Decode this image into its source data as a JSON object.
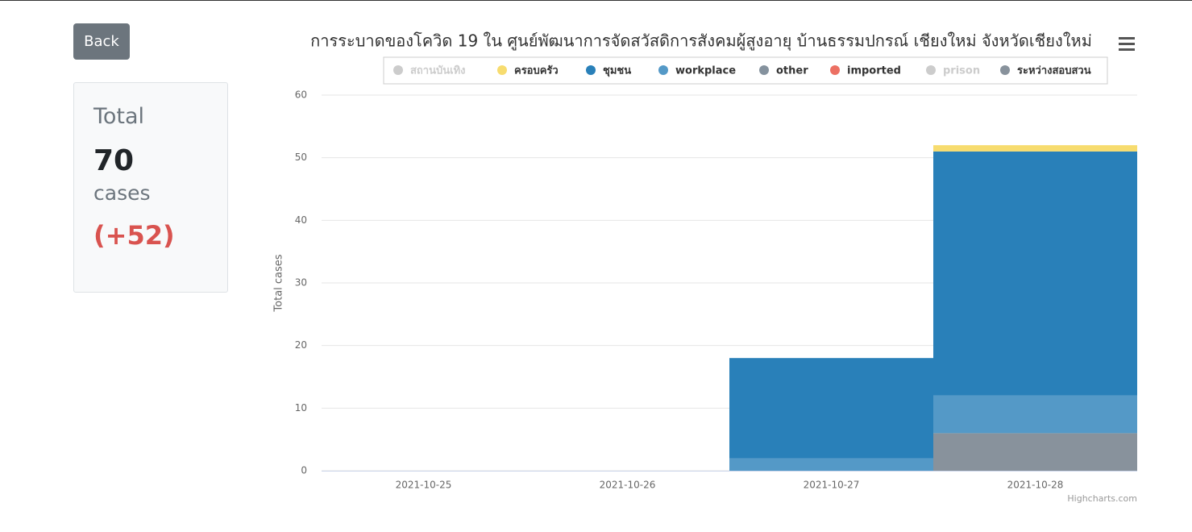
{
  "back_button": "Back",
  "summary": {
    "label": "Total",
    "total": "70",
    "unit": "cases",
    "change": "(+52)"
  },
  "chart_data": {
    "type": "stacked-bar",
    "title": "การระบาดของโควิด 19 ใน ศูนย์พัฒนาการจัดสวัสดิการสังคมผู้สูงอายุ บ้านธรรมปกรณ์ เชียงใหม่ จังหวัดเชียงใหม่",
    "y_label": "Total cases",
    "credits": "Highcharts.com",
    "categories": [
      "2021-10-25",
      "2021-10-26",
      "2021-10-27",
      "2021-10-28"
    ],
    "ylim": [
      0,
      60
    ],
    "yticks": [
      0,
      10,
      20,
      30,
      40,
      50,
      60
    ],
    "grid": true,
    "series": [
      {
        "name": "สถานบันเทิง",
        "color": "#cccccc",
        "visible": false,
        "values": [
          0,
          0,
          0,
          0
        ]
      },
      {
        "name": "ครอบครัว",
        "color": "#f7dc6f",
        "visible": true,
        "values": [
          0,
          0,
          0,
          1
        ]
      },
      {
        "name": "ชุมชน",
        "color": "#2980b9",
        "visible": true,
        "values": [
          0,
          0,
          16,
          39
        ]
      },
      {
        "name": "workplace",
        "color": "#5499c7",
        "visible": true,
        "values": [
          0,
          0,
          2,
          6
        ]
      },
      {
        "name": "other",
        "color": "#85929e",
        "visible": true,
        "values": [
          0,
          0,
          0,
          0
        ]
      },
      {
        "name": "imported",
        "color": "#ec7063",
        "visible": true,
        "values": [
          0,
          0,
          0,
          0
        ]
      },
      {
        "name": "prison",
        "color": "#cccccc",
        "visible": false,
        "values": [
          0,
          0,
          0,
          0
        ]
      },
      {
        "name": "ระหว่างสอบสวน",
        "color": "#88929c",
        "visible": true,
        "values": [
          0,
          0,
          0,
          6
        ]
      }
    ]
  }
}
